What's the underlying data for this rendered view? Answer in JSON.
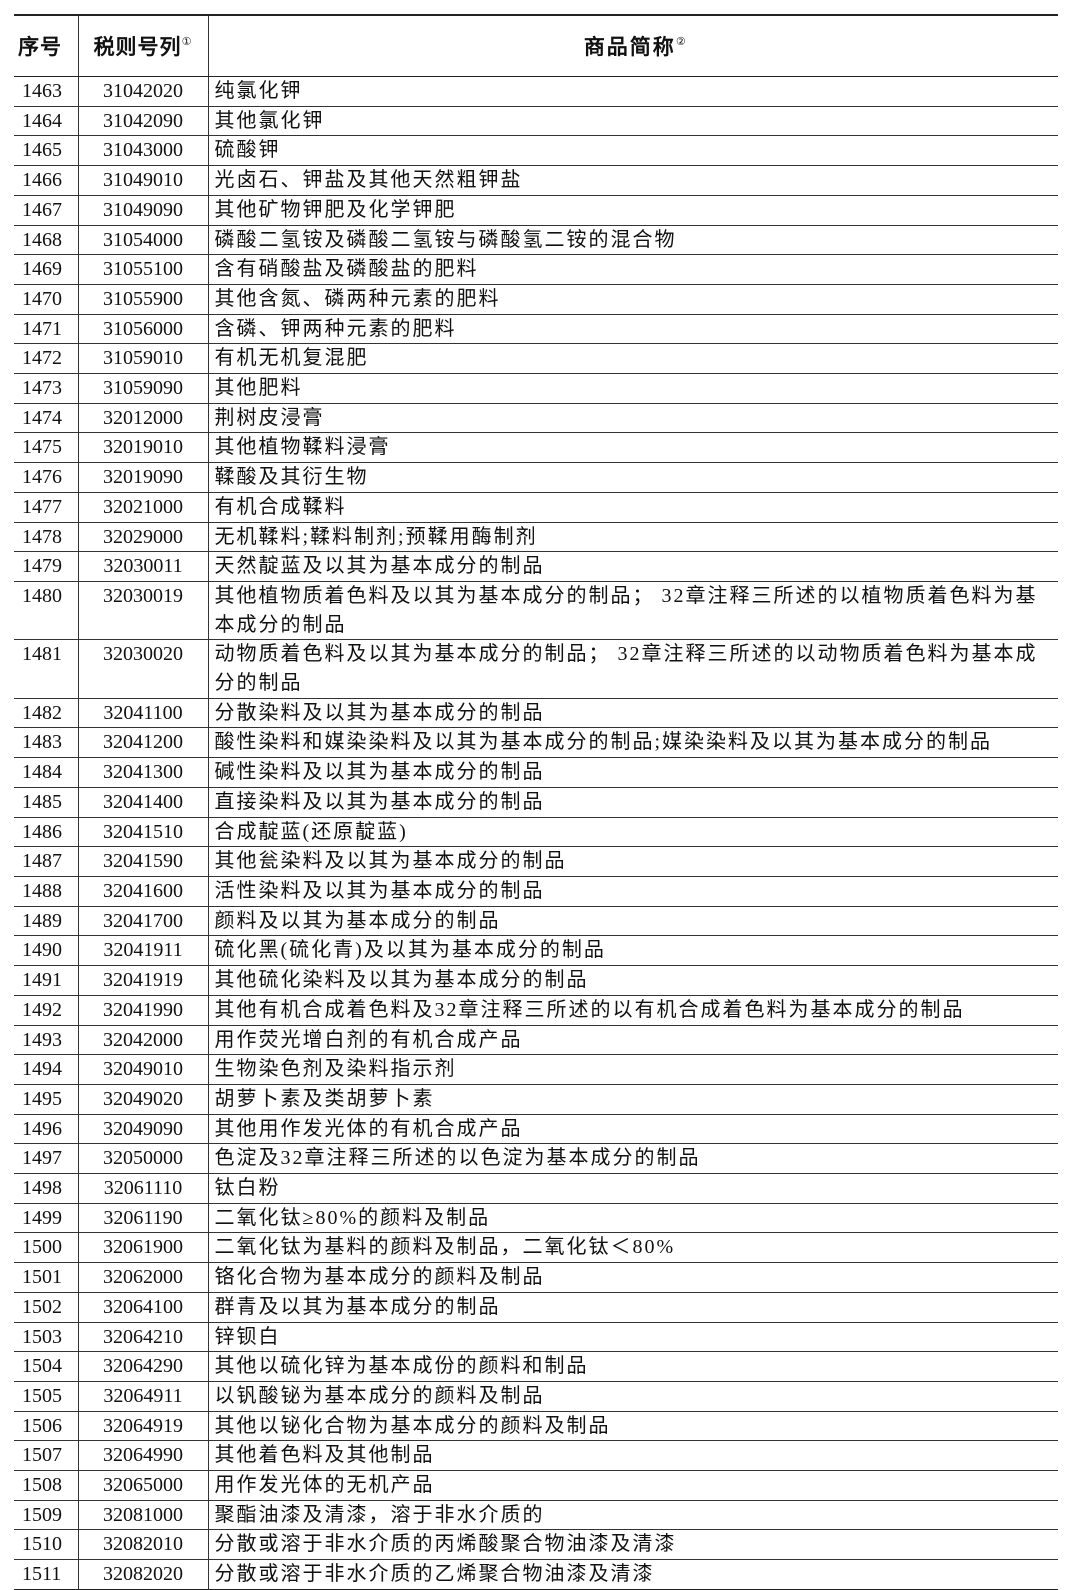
{
  "header": {
    "columns": [
      {
        "label": "序号"
      },
      {
        "label": "税则号列",
        "note": "①"
      },
      {
        "label": "商品简称",
        "note": "②"
      }
    ]
  },
  "table": {
    "rows": [
      [
        "1463",
        "31042020",
        "纯氯化钾"
      ],
      [
        "1464",
        "31042090",
        "其他氯化钾"
      ],
      [
        "1465",
        "31043000",
        "硫酸钾"
      ],
      [
        "1466",
        "31049010",
        "光卤石、钾盐及其他天然粗钾盐"
      ],
      [
        "1467",
        "31049090",
        "其他矿物钾肥及化学钾肥"
      ],
      [
        "1468",
        "31054000",
        "磷酸二氢铵及磷酸二氢铵与磷酸氢二铵的混合物"
      ],
      [
        "1469",
        "31055100",
        "含有硝酸盐及磷酸盐的肥料"
      ],
      [
        "1470",
        "31055900",
        "其他含氮、磷两种元素的肥料"
      ],
      [
        "1471",
        "31056000",
        "含磷、钾两种元素的肥料"
      ],
      [
        "1472",
        "31059010",
        "有机无机复混肥"
      ],
      [
        "1473",
        "31059090",
        "其他肥料"
      ],
      [
        "1474",
        "32012000",
        "荆树皮浸膏"
      ],
      [
        "1475",
        "32019010",
        "其他植物鞣料浸膏"
      ],
      [
        "1476",
        "32019090",
        "鞣酸及其衍生物"
      ],
      [
        "1477",
        "32021000",
        "有机合成鞣料"
      ],
      [
        "1478",
        "32029000",
        "无机鞣料;鞣料制剂;预鞣用酶制剂"
      ],
      [
        "1479",
        "32030011",
        "天然靛蓝及以其为基本成分的制品"
      ],
      [
        "1480",
        "32030019",
        "其他植物质着色料及以其为基本成分的制品； 32章注释三所述的以植物质着色料为基本成分的制品"
      ],
      [
        "1481",
        "32030020",
        "动物质着色料及以其为基本成分的制品； 32章注释三所述的以动物质着色料为基本成分的制品"
      ],
      [
        "1482",
        "32041100",
        "分散染料及以其为基本成分的制品"
      ],
      [
        "1483",
        "32041200",
        "酸性染料和媒染染料及以其为基本成分的制品;媒染染料及以其为基本成分的制品"
      ],
      [
        "1484",
        "32041300",
        "碱性染料及以其为基本成分的制品"
      ],
      [
        "1485",
        "32041400",
        "直接染料及以其为基本成分的制品"
      ],
      [
        "1486",
        "32041510",
        "合成靛蓝(还原靛蓝)"
      ],
      [
        "1487",
        "32041590",
        "其他瓮染料及以其为基本成分的制品"
      ],
      [
        "1488",
        "32041600",
        "活性染料及以其为基本成分的制品"
      ],
      [
        "1489",
        "32041700",
        "颜料及以其为基本成分的制品"
      ],
      [
        "1490",
        "32041911",
        "硫化黑(硫化青)及以其为基本成分的制品"
      ],
      [
        "1491",
        "32041919",
        "其他硫化染料及以其为基本成分的制品"
      ],
      [
        "1492",
        "32041990",
        "其他有机合成着色料及32章注释三所述的以有机合成着色料为基本成分的制品"
      ],
      [
        "1493",
        "32042000",
        "用作荧光增白剂的有机合成产品"
      ],
      [
        "1494",
        "32049010",
        "生物染色剂及染料指示剂"
      ],
      [
        "1495",
        "32049020",
        "胡萝卜素及类胡萝卜素"
      ],
      [
        "1496",
        "32049090",
        "其他用作发光体的有机合成产品"
      ],
      [
        "1497",
        "32050000",
        "色淀及32章注释三所述的以色淀为基本成分的制品"
      ],
      [
        "1498",
        "32061110",
        "钛白粉"
      ],
      [
        "1499",
        "32061190",
        "二氧化钛≥80%的颜料及制品"
      ],
      [
        "1500",
        "32061900",
        "二氧化钛为基料的颜料及制品，二氧化钛＜80%"
      ],
      [
        "1501",
        "32062000",
        "铬化合物为基本成分的颜料及制品"
      ],
      [
        "1502",
        "32064100",
        "群青及以其为基本成分的制品"
      ],
      [
        "1503",
        "32064210",
        "锌钡白"
      ],
      [
        "1504",
        "32064290",
        "其他以硫化锌为基本成份的颜料和制品"
      ],
      [
        "1505",
        "32064911",
        "以钒酸铋为基本成分的颜料及制品"
      ],
      [
        "1506",
        "32064919",
        "其他以铋化合物为基本成分的颜料及制品"
      ],
      [
        "1507",
        "32064990",
        "其他着色料及其他制品"
      ],
      [
        "1508",
        "32065000",
        "用作发光体的无机产品"
      ],
      [
        "1509",
        "32081000",
        "聚酯油漆及清漆，溶于非水介质的"
      ],
      [
        "1510",
        "32082010",
        "分散或溶于非水介质的丙烯酸聚合物油漆及清漆"
      ],
      [
        "1511",
        "32082020",
        "分散或溶于非水介质的乙烯聚合物油漆及清漆"
      ]
    ]
  }
}
